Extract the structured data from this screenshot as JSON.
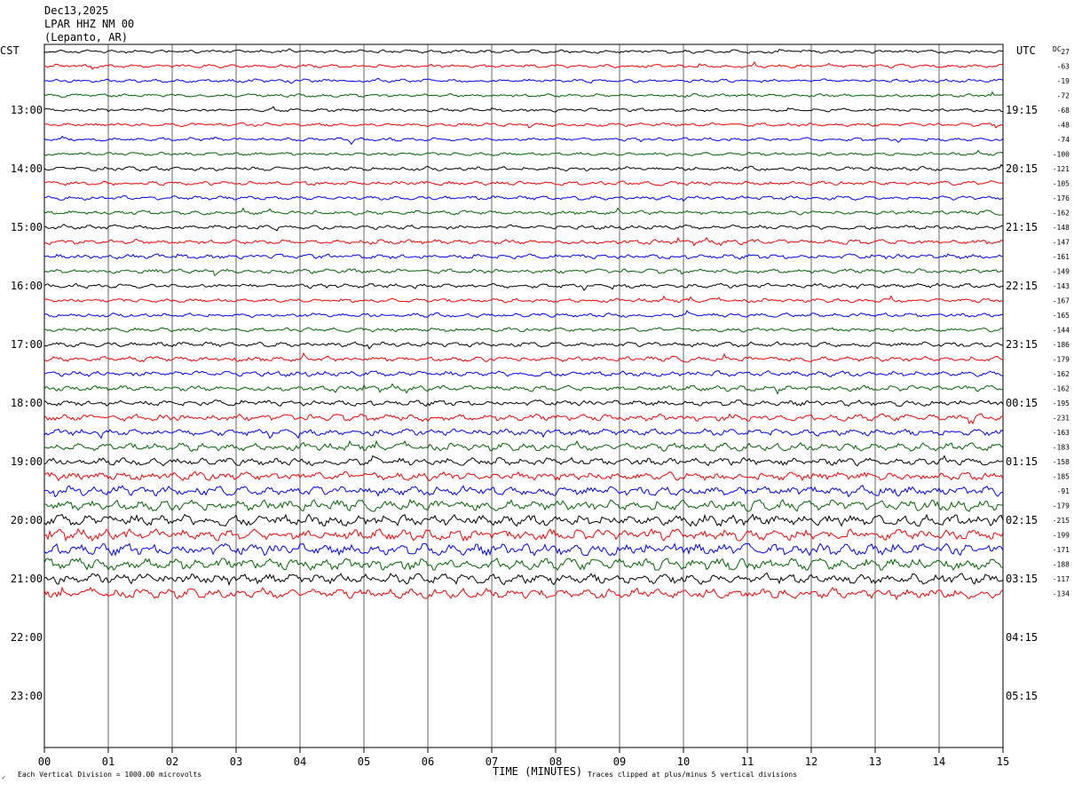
{
  "header": {
    "date": "Dec13,2025",
    "station": "LPAR HHZ NM 00",
    "location": "(Lepanto, AR)"
  },
  "chart_data": {
    "type": "line",
    "title": "",
    "left_axis_label": "CST",
    "right_axis_label": "UTC",
    "dc_label": "DC",
    "xlabel": "TIME (MINUTES)",
    "xlim": [
      0,
      15
    ],
    "x_ticks": [
      "00",
      "01",
      "02",
      "03",
      "04",
      "05",
      "06",
      "07",
      "08",
      "09",
      "10",
      "11",
      "12",
      "13",
      "14",
      "15"
    ],
    "rows_per_hour": 4,
    "trace_count": 38,
    "left_hour_labels": [
      "13:00",
      "14:00",
      "15:00",
      "16:00",
      "17:00",
      "18:00",
      "19:00",
      "20:00",
      "21:00",
      "22:00",
      "23:00"
    ],
    "right_hour_labels": [
      "19:15",
      "20:15",
      "21:15",
      "22:15",
      "23:15",
      "00:15",
      "01:15",
      "02:15",
      "03:15",
      "04:15",
      "05:15"
    ],
    "dc_offsets": [
      "27",
      "-63",
      "-19",
      "-72",
      "-68",
      "-48",
      "-74",
      "-100",
      "-121",
      "-105",
      "-176",
      "-162",
      "-148",
      "-147",
      "-161",
      "-149",
      "-143",
      "-167",
      "-165",
      "-144",
      "-186",
      "-179",
      "-162",
      "-162",
      "-195",
      "-231",
      "-163",
      "-183",
      "-158",
      "-185",
      "-91",
      "-179",
      "-215",
      "-199",
      "-171",
      "-188",
      "-117",
      "-134"
    ],
    "trace_color_cycle": [
      "#000000",
      "#ff0000",
      "#0000ff",
      "#006400"
    ],
    "trace_amplitude_level": [
      1.0,
      1.0,
      1.0,
      1.0,
      1.0,
      1.0,
      1.0,
      1.0,
      1.2,
      1.2,
      1.2,
      1.2,
      1.3,
      1.4,
      1.4,
      1.3,
      1.3,
      1.2,
      1.2,
      1.2,
      1.4,
      1.5,
      1.6,
      1.6,
      1.7,
      2.0,
      2.0,
      2.3,
      2.2,
      2.6,
      2.8,
      3.2,
      3.4,
      3.2,
      3.6,
      3.5,
      3.1,
      2.8
    ],
    "footer_left": "Each Vertical Division = 1000.00 microvolts",
    "footer_right": "Traces clipped at plus/minus 5 vertical divisions"
  }
}
